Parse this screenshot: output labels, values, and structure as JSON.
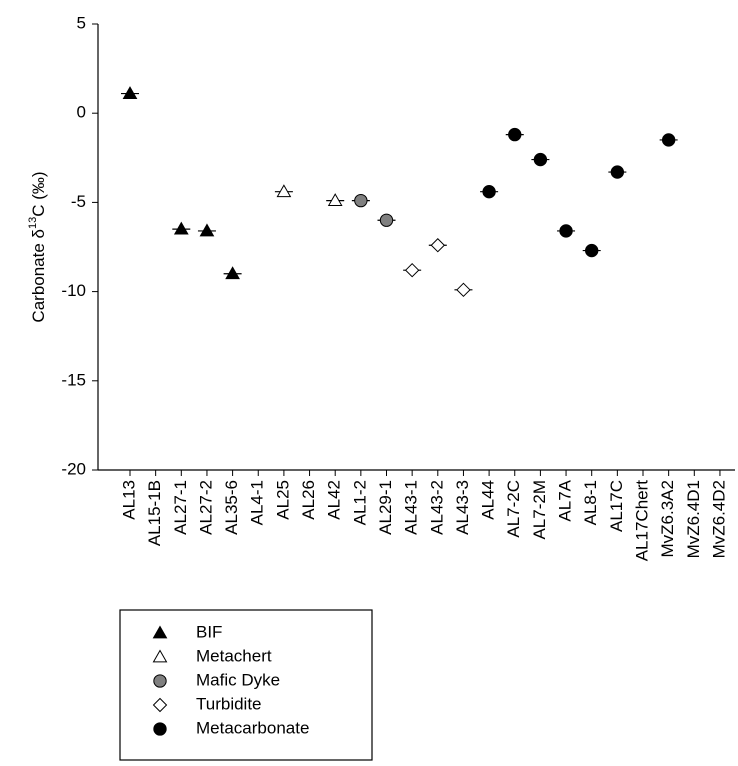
{
  "chart_data": {
    "type": "scatter",
    "ylabel": [
      "Carbonate δ",
      "13",
      "C (‰)"
    ],
    "categories": [
      "AL13",
      "AL15-1B",
      "AL27-1",
      "AL27-2",
      "AL35-6",
      "AL4-1",
      "AL25",
      "AL26",
      "AL42",
      "AL1-2",
      "AL29-1",
      "AL43-1",
      "AL43-2",
      "AL43-3",
      "AL44",
      "AL7-2C",
      "AL7-2M",
      "AL7A",
      "AL8-1",
      "AL17C",
      "AL17Chert",
      "MvZ6.3A2",
      "MvZ6.4D1",
      "MvZ6.4D2"
    ],
    "series": [
      {
        "name": "BIF",
        "marker": "triangle",
        "color": "#000000",
        "filled": true,
        "values": [
          1.1,
          null,
          -6.5,
          -6.6,
          -9.0,
          null,
          null,
          null,
          null,
          null,
          null,
          null,
          null,
          null,
          null,
          null,
          null,
          null,
          null,
          null,
          null,
          null,
          null,
          null
        ]
      },
      {
        "name": "Metachert",
        "marker": "triangle",
        "color": "#000000",
        "filled": false,
        "values": [
          null,
          null,
          null,
          null,
          null,
          null,
          -4.4,
          null,
          -4.9,
          null,
          null,
          null,
          null,
          null,
          null,
          null,
          null,
          null,
          null,
          null,
          null,
          null,
          null,
          null
        ]
      },
      {
        "name": "Mafic Dyke",
        "marker": "circle",
        "color": "#808080",
        "filled": true,
        "values": [
          null,
          null,
          null,
          null,
          null,
          null,
          null,
          null,
          null,
          -4.9,
          -6.0,
          null,
          null,
          null,
          null,
          null,
          null,
          null,
          null,
          null,
          null,
          null,
          null,
          null
        ]
      },
      {
        "name": "Turbidite",
        "marker": "diamond",
        "color": "#000000",
        "filled": false,
        "values": [
          null,
          null,
          null,
          null,
          null,
          null,
          null,
          null,
          null,
          null,
          null,
          -8.8,
          -7.4,
          -9.9,
          null,
          null,
          null,
          null,
          null,
          null,
          null,
          null,
          null,
          null
        ]
      },
      {
        "name": "Metacarbonate",
        "marker": "circle",
        "color": "#000000",
        "filled": true,
        "values": [
          null,
          null,
          null,
          null,
          null,
          null,
          null,
          null,
          null,
          null,
          null,
          null,
          null,
          null,
          -4.4,
          -1.2,
          -2.6,
          -6.6,
          -7.7,
          -3.3,
          null,
          -1.5,
          null,
          null
        ]
      }
    ],
    "ylim": [
      -20,
      5
    ],
    "yticks": [
      5,
      0,
      -5,
      -10,
      -15,
      -20
    ]
  }
}
